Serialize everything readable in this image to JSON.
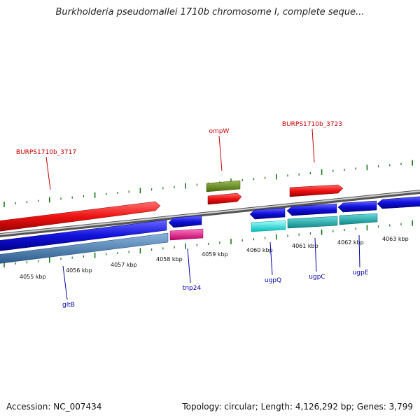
{
  "title": "Burkholderia pseudomallei 1710b chromosome I, complete seque...",
  "footer": {
    "accession": "Accession: NC_007434",
    "summary": "Topology: circular; Length: 4,126,292 bp; Genes: 3,799"
  },
  "kbp_ticks": [
    "4055 kbp",
    "4056 kbp",
    "4057 kbp",
    "4058 kbp",
    "4059 kbp",
    "4060 kbp",
    "4061 kbp",
    "4062 kbp",
    "4063 kbp"
  ],
  "gene_labels": [
    {
      "text": "BURPS1710b_3717",
      "color": "#cc0000"
    },
    {
      "text": "ompW",
      "color": "#cc0000"
    },
    {
      "text": "BURPS1710b_3723",
      "color": "#cc0000"
    },
    {
      "text": "gltB",
      "color": "#0000aa"
    },
    {
      "text": "tnp24",
      "color": "#0000aa"
    },
    {
      "text": "ugpQ",
      "color": "#0000aa"
    },
    {
      "text": "ugpC",
      "color": "#0000aa"
    },
    {
      "text": "ugpE",
      "color": "#0000aa"
    }
  ],
  "colors": {
    "forward_cds": "#ee1111",
    "reverse_cds": "#1111dd",
    "olive": "#6a8a20",
    "steel": "#4a7aaa",
    "magenta": "#ee1188",
    "cyan": "#00cccc",
    "teal": "#22bbbb",
    "tick": "#1a7a1a",
    "backbone": "#888888"
  }
}
